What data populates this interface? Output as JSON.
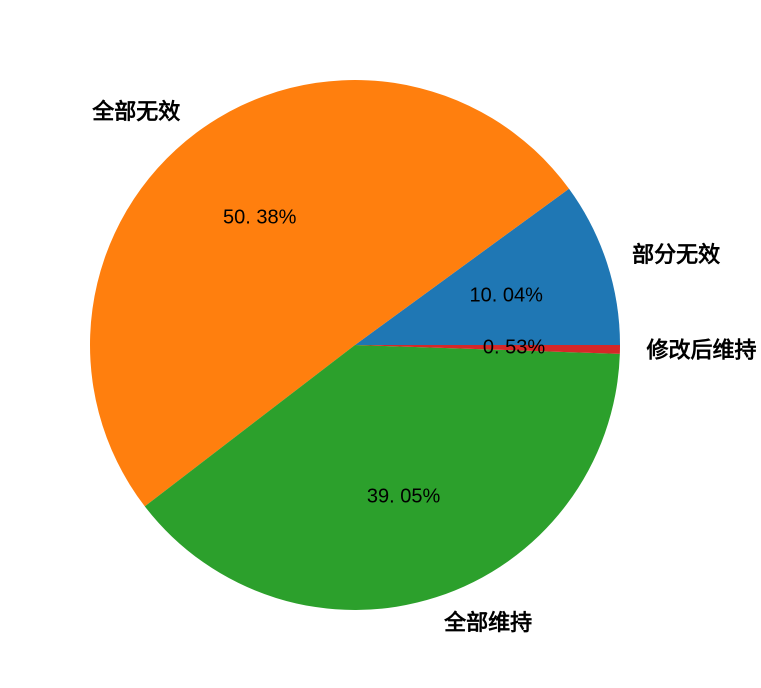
{
  "figure": {
    "background_color": "#ffffff",
    "text_color": "#000000"
  },
  "chart_data": {
    "type": "pie",
    "title": "",
    "legend_position": "none",
    "grid": false,
    "start_angle": 0,
    "direction": "counterclockwise",
    "label_distance": 1.1,
    "pct_distance": 0.6,
    "categories": [
      "部分无效",
      "全部无效",
      "全部维持",
      "修改后维持"
    ],
    "values": [
      10.04,
      50.38,
      39.05,
      0.53
    ],
    "slices": [
      {
        "label": "部分无效",
        "value": 10.04,
        "pct_label": "10. 04%",
        "color": "#1f77b4"
      },
      {
        "label": "全部无效",
        "value": 50.38,
        "pct_label": "50. 38%",
        "color": "#ff7f0e"
      },
      {
        "label": "全部维持",
        "value": 39.05,
        "pct_label": "39. 05%",
        "color": "#2ca02c"
      },
      {
        "label": "修改后维持",
        "value": 0.53,
        "pct_label": "0. 53%",
        "color": "#d62728"
      }
    ]
  }
}
